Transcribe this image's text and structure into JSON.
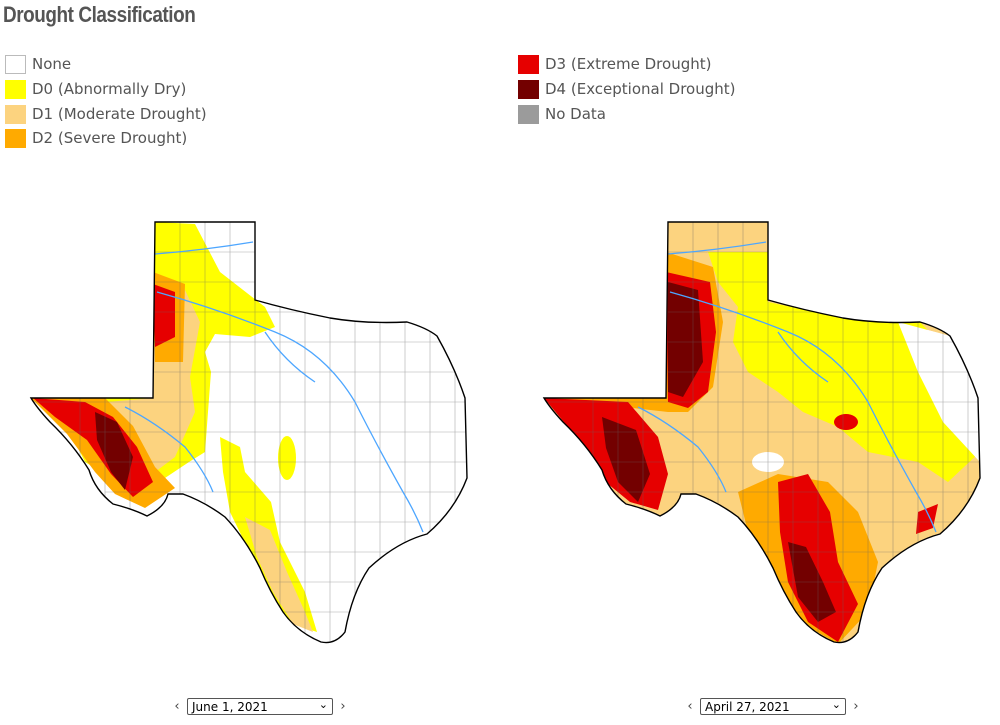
{
  "title": "Drought Classification",
  "legend": [
    {
      "label": "None",
      "color": "#ffffff"
    },
    {
      "label": "D0 (Abnormally Dry)",
      "color": "#ffff00"
    },
    {
      "label": "D1 (Moderate Drought)",
      "color": "#fcd37f"
    },
    {
      "label": "D2 (Severe Drought)",
      "color": "#ffaa00"
    },
    {
      "label": "D3 (Extreme Drought)",
      "color": "#e60000"
    },
    {
      "label": "D4 (Exceptional Drought)",
      "color": "#730000"
    },
    {
      "label": "No Data",
      "color": "#9b9b9b"
    }
  ],
  "maps": [
    {
      "date": "June 1, 2021"
    },
    {
      "date": "April 27, 2021"
    }
  ],
  "nav": {
    "prev": "‹",
    "next": "›",
    "caret": "⌄"
  }
}
